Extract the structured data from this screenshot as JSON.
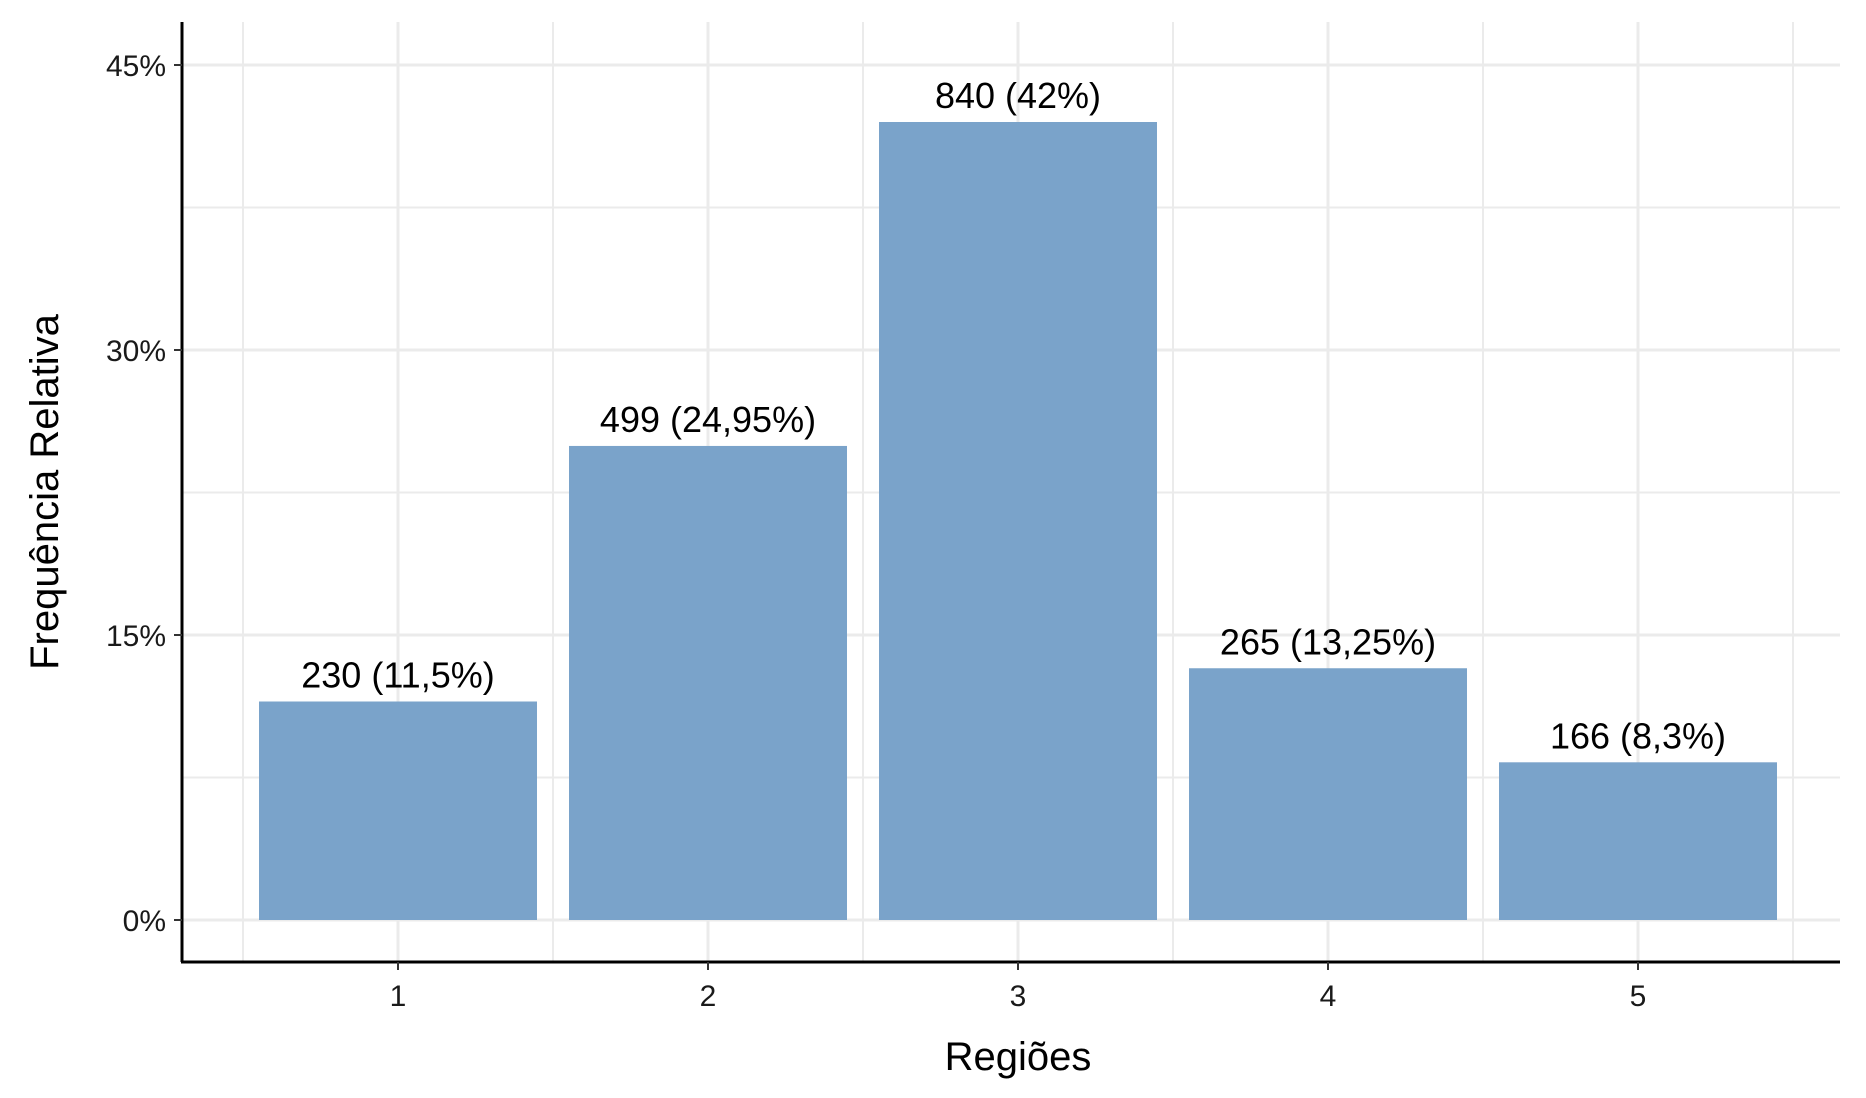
{
  "chart_data": {
    "type": "bar",
    "title": "",
    "xlabel": "Regiões",
    "ylabel": "Frequência Relativa",
    "categories": [
      "1",
      "2",
      "3",
      "4",
      "5"
    ],
    "values": [
      11.5,
      24.95,
      42,
      13.25,
      8.3
    ],
    "counts": [
      230,
      499,
      840,
      265,
      166
    ],
    "data_labels": [
      "230 (11,5%)",
      "499 (24,95%)",
      "840 (42%)",
      "265 (13,25%)",
      "166 (8,3%)"
    ],
    "y_ticks": [
      0,
      15,
      30,
      45
    ],
    "y_tick_labels": [
      "0%",
      "15%",
      "30%",
      "45%"
    ],
    "ylim": [
      0,
      45
    ],
    "grid": true,
    "legend": "none",
    "bar_color": "#7aa3ca",
    "grid_color": "#ebebeb"
  }
}
